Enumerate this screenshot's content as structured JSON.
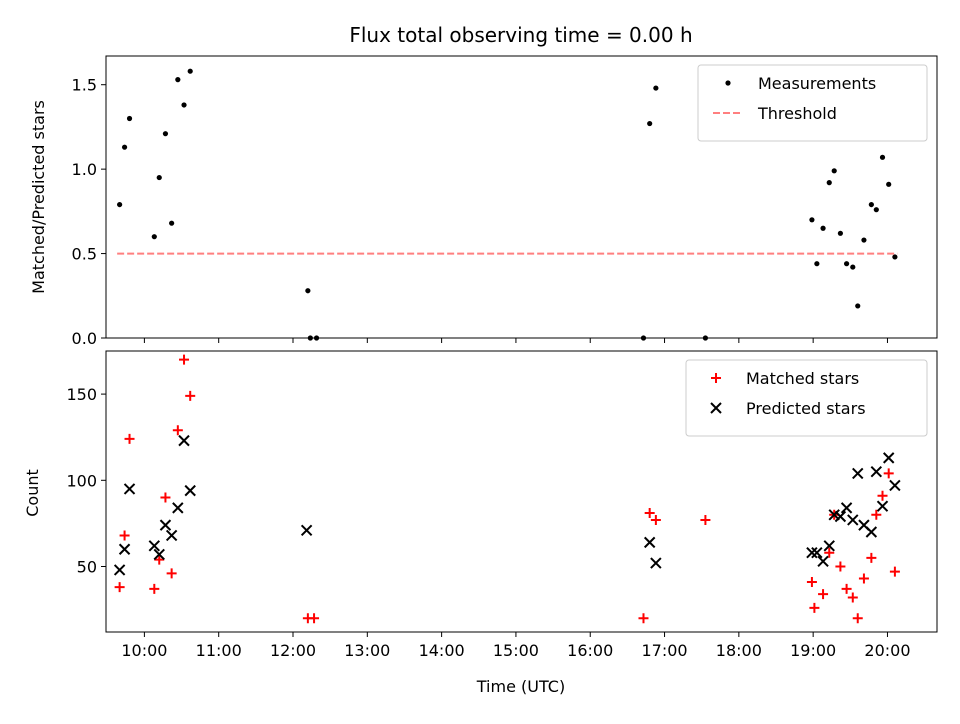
{
  "chart_data": {
    "type": "scatter",
    "title": "Flux total observing time = 0.00 h",
    "xlabel": "Time (UTC)",
    "x_ticks": [
      "10:00",
      "11:00",
      "12:00",
      "13:00",
      "14:00",
      "15:00",
      "16:00",
      "17:00",
      "18:00",
      "19:00",
      "20:00"
    ],
    "xlim": [
      "09:29",
      "20:40"
    ],
    "panels": [
      {
        "ylabel": "Matched/Predicted stars",
        "ylim": [
          0,
          1.67
        ],
        "y_ticks": [
          "0.0",
          "0.5",
          "1.0",
          "1.5"
        ],
        "legend_position": "top-right",
        "series": [
          {
            "name": "Measurements",
            "marker": "dot",
            "color": "#000000",
            "points": [
              [
                "09:40",
                0.79
              ],
              [
                "09:44",
                1.13
              ],
              [
                "09:48",
                1.3
              ],
              [
                "10:08",
                0.6
              ],
              [
                "10:12",
                0.95
              ],
              [
                "10:17",
                1.21
              ],
              [
                "10:22",
                0.68
              ],
              [
                "10:27",
                1.53
              ],
              [
                "10:32",
                1.38
              ],
              [
                "10:37",
                1.58
              ],
              [
                "12:12",
                0.28
              ],
              [
                "12:14",
                0.0
              ],
              [
                "12:19",
                0.0
              ],
              [
                "16:43",
                0.0
              ],
              [
                "16:48",
                1.27
              ],
              [
                "16:53",
                1.48
              ],
              [
                "17:33",
                0.0
              ],
              [
                "18:59",
                0.7
              ],
              [
                "19:03",
                0.44
              ],
              [
                "19:08",
                0.65
              ],
              [
                "19:13",
                0.92
              ],
              [
                "19:17",
                0.99
              ],
              [
                "19:22",
                0.62
              ],
              [
                "19:27",
                0.44
              ],
              [
                "19:32",
                0.42
              ],
              [
                "19:36",
                0.19
              ],
              [
                "19:41",
                0.58
              ],
              [
                "19:47",
                0.79
              ],
              [
                "19:51",
                0.76
              ],
              [
                "19:56",
                1.07
              ],
              [
                "20:01",
                0.91
              ],
              [
                "20:06",
                0.48
              ]
            ]
          },
          {
            "name": "Threshold",
            "marker": "dashed-line",
            "color": "#ff7f7f",
            "x_range": [
              "09:38",
              "20:08"
            ],
            "value": 0.5
          }
        ]
      },
      {
        "ylabel": "Count",
        "ylim": [
          12,
          175
        ],
        "y_ticks": [
          "50",
          "100",
          "150"
        ],
        "legend_position": "top-right",
        "series": [
          {
            "name": "Matched stars",
            "marker": "plus",
            "color": "#ff0000",
            "points": [
              [
                "09:40",
                38
              ],
              [
                "09:44",
                68
              ],
              [
                "09:48",
                124
              ],
              [
                "10:08",
                37
              ],
              [
                "10:12",
                54
              ],
              [
                "10:17",
                90
              ],
              [
                "10:22",
                46
              ],
              [
                "10:27",
                129
              ],
              [
                "10:32",
                170
              ],
              [
                "10:37",
                149
              ],
              [
                "12:12",
                20
              ],
              [
                "12:17",
                20
              ],
              [
                "16:43",
                20
              ],
              [
                "16:48",
                81
              ],
              [
                "16:53",
                77
              ],
              [
                "17:33",
                77
              ],
              [
                "18:59",
                41
              ],
              [
                "19:01",
                26
              ],
              [
                "19:08",
                34
              ],
              [
                "19:13",
                58
              ],
              [
                "19:17",
                80
              ],
              [
                "19:22",
                50
              ],
              [
                "19:27",
                37
              ],
              [
                "19:32",
                32
              ],
              [
                "19:36",
                20
              ],
              [
                "19:41",
                43
              ],
              [
                "19:47",
                55
              ],
              [
                "19:51",
                80
              ],
              [
                "19:56",
                91
              ],
              [
                "20:01",
                104
              ],
              [
                "20:06",
                47
              ]
            ]
          },
          {
            "name": "Predicted stars",
            "marker": "x",
            "color": "#000000",
            "points": [
              [
                "09:40",
                48
              ],
              [
                "09:44",
                60
              ],
              [
                "09:48",
                95
              ],
              [
                "10:08",
                62
              ],
              [
                "10:12",
                57
              ],
              [
                "10:17",
                74
              ],
              [
                "10:22",
                68
              ],
              [
                "10:27",
                84
              ],
              [
                "10:32",
                123
              ],
              [
                "10:37",
                94
              ],
              [
                "12:11",
                71
              ],
              [
                "16:48",
                64
              ],
              [
                "16:53",
                52
              ],
              [
                "18:59",
                58
              ],
              [
                "19:03",
                58
              ],
              [
                "19:08",
                53
              ],
              [
                "19:13",
                62
              ],
              [
                "19:17",
                80
              ],
              [
                "19:22",
                79
              ],
              [
                "19:27",
                84
              ],
              [
                "19:32",
                77
              ],
              [
                "19:36",
                104
              ],
              [
                "19:41",
                74
              ],
              [
                "19:47",
                70
              ],
              [
                "19:51",
                105
              ],
              [
                "19:56",
                85
              ],
              [
                "20:01",
                113
              ],
              [
                "20:06",
                97
              ]
            ]
          }
        ]
      }
    ]
  }
}
